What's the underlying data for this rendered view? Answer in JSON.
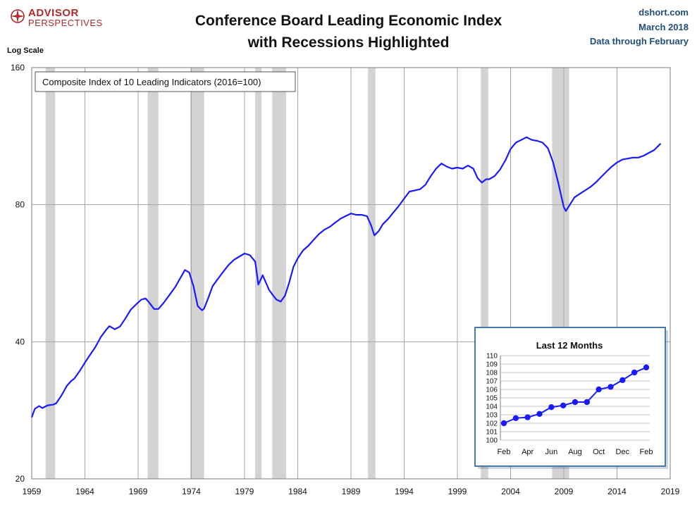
{
  "header": {
    "logo_line1": "ADVISOR",
    "logo_line2": "PERSPECTIVES",
    "title_line1": "Conference Board Leading Economic Index",
    "title_line2": "with Recessions Highlighted",
    "source": "dshort.com",
    "date": "March 2018",
    "data_note": "Data through February",
    "yaxis_note": "Log Scale"
  },
  "colors": {
    "line": "#1a1aff",
    "recession": "#d3d3d3",
    "grid": "#a6a6a6",
    "inset_border": "#4a7ab0"
  },
  "chart_data": [
    {
      "type": "line",
      "title": "Conference Board Leading Economic Index with Recessions Highlighted",
      "legend": "Composite Index of 10 Leading Indicators (2016=100)",
      "yscale": "log",
      "ylim": [
        20,
        160
      ],
      "xlim": [
        1959,
        2019
      ],
      "y_ticks": [
        20,
        40,
        80,
        160
      ],
      "x_ticks": [
        1959,
        1964,
        1969,
        1974,
        1979,
        1984,
        1989,
        1994,
        1999,
        2004,
        2009,
        2014,
        2019
      ],
      "grid": true,
      "recessions": [
        [
          1960.3,
          1961.2
        ],
        [
          1969.9,
          1970.9
        ],
        [
          1973.9,
          1975.2
        ],
        [
          1980.0,
          1980.6
        ],
        [
          1981.6,
          1982.9
        ],
        [
          1990.6,
          1991.3
        ],
        [
          2001.2,
          2001.9
        ],
        [
          2007.9,
          2009.5
        ]
      ],
      "x": [
        1959.0,
        1959.3,
        1959.7,
        1960.0,
        1960.5,
        1961.0,
        1961.3,
        1961.8,
        1962.3,
        1962.7,
        1963.0,
        1963.5,
        1964.0,
        1964.5,
        1965.0,
        1965.5,
        1966.0,
        1966.3,
        1966.8,
        1967.3,
        1967.8,
        1968.3,
        1968.8,
        1969.3,
        1969.7,
        1970.0,
        1970.5,
        1970.9,
        1971.4,
        1972.0,
        1972.5,
        1973.0,
        1973.4,
        1973.8,
        1974.2,
        1974.6,
        1975.0,
        1975.2,
        1975.6,
        1976.0,
        1976.5,
        1977.0,
        1977.5,
        1978.0,
        1978.5,
        1979.0,
        1979.5,
        1980.0,
        1980.3,
        1980.7,
        1981.0,
        1981.3,
        1981.7,
        1982.0,
        1982.4,
        1982.8,
        1983.2,
        1983.6,
        1984.0,
        1984.5,
        1985.0,
        1985.5,
        1986.0,
        1986.5,
        1987.0,
        1987.5,
        1988.0,
        1988.5,
        1989.0,
        1989.5,
        1990.0,
        1990.5,
        1990.9,
        1991.2,
        1991.6,
        1992.0,
        1992.5,
        1993.0,
        1993.5,
        1994.0,
        1994.5,
        1995.0,
        1995.5,
        1996.0,
        1996.5,
        1997.0,
        1997.5,
        1998.0,
        1998.5,
        1999.0,
        1999.5,
        2000.0,
        2000.5,
        2000.9,
        2001.3,
        2001.7,
        2002.0,
        2002.5,
        2003.0,
        2003.5,
        2004.0,
        2004.5,
        2005.0,
        2005.5,
        2006.0,
        2006.5,
        2007.0,
        2007.5,
        2008.0,
        2008.5,
        2009.0,
        2009.2,
        2009.5,
        2010.0,
        2010.5,
        2011.0,
        2011.5,
        2012.0,
        2012.5,
        2013.0,
        2013.5,
        2014.0,
        2014.5,
        2015.0,
        2015.5,
        2016.0,
        2016.5,
        2017.0,
        2017.5,
        2018.1
      ],
      "values": [
        27.3,
        28.5,
        28.9,
        28.6,
        29.0,
        29.1,
        29.3,
        30.5,
        32.0,
        32.8,
        33.2,
        34.5,
        36.0,
        37.5,
        39.0,
        41.0,
        42.5,
        43.3,
        42.6,
        43.2,
        45.0,
        47.0,
        48.3,
        49.5,
        49.8,
        48.9,
        47.2,
        47.2,
        48.7,
        50.9,
        52.8,
        55.4,
        57.5,
        56.8,
        53.0,
        47.9,
        46.9,
        47.3,
        50.0,
        53.0,
        55.0,
        57.0,
        59.0,
        60.5,
        61.5,
        62.5,
        62.0,
        60.0,
        53.4,
        56.0,
        54.0,
        52.0,
        50.5,
        49.5,
        49.0,
        50.5,
        54.0,
        58.5,
        61.0,
        63.5,
        65.0,
        67.0,
        69.0,
        70.5,
        71.5,
        73.0,
        74.5,
        75.5,
        76.5,
        76.0,
        76.0,
        75.5,
        72.0,
        68.5,
        70.0,
        72.5,
        74.5,
        77.0,
        79.5,
        82.5,
        85.5,
        86.0,
        86.5,
        88.5,
        92.5,
        96.0,
        98.5,
        97.0,
        96.0,
        96.5,
        96.0,
        97.5,
        96.0,
        91.5,
        89.5,
        91.0,
        91.0,
        92.5,
        95.5,
        100.0,
        106.0,
        109.5,
        111.0,
        112.5,
        111.0,
        110.5,
        109.5,
        106.5,
        99.0,
        89.0,
        79.0,
        77.5,
        79.5,
        83.0,
        84.5,
        86.0,
        87.5,
        89.5,
        92.0,
        94.5,
        97.0,
        99.0,
        100.5,
        101.0,
        101.5,
        101.5,
        102.5,
        104.0,
        105.5,
        109.0
      ]
    },
    {
      "type": "line",
      "title": "Last 12 Months",
      "categories": [
        "Feb",
        "Mar",
        "Apr",
        "May",
        "Jun",
        "Jul",
        "Aug",
        "Sep",
        "Oct",
        "Nov",
        "Dec",
        "Jan",
        "Feb"
      ],
      "x_tick_labels": [
        "Feb",
        "Apr",
        "Jun",
        "Aug",
        "Oct",
        "Dec",
        "Feb"
      ],
      "values": [
        102.0,
        102.6,
        102.7,
        103.1,
        103.9,
        104.1,
        104.5,
        104.5,
        106.0,
        106.3,
        107.1,
        108.0,
        108.6
      ],
      "ylim": [
        100,
        110
      ],
      "y_ticks": [
        100,
        101,
        102,
        103,
        104,
        105,
        106,
        107,
        108,
        109,
        110
      ],
      "grid": true
    }
  ]
}
